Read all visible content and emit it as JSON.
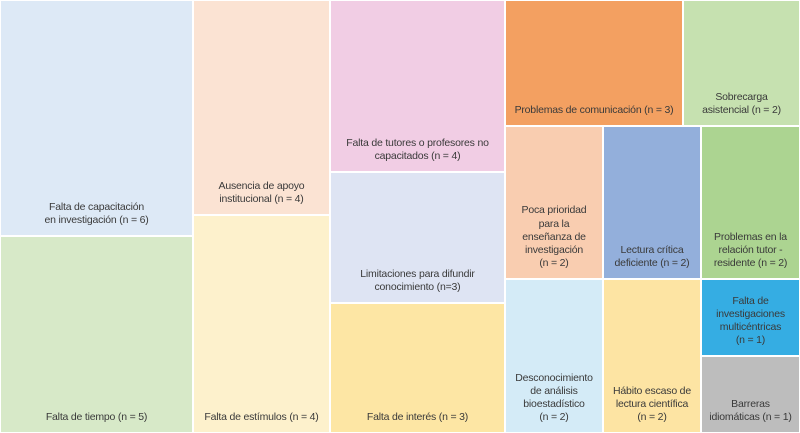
{
  "chart_data": {
    "type": "treemap",
    "title": "",
    "items": [
      {
        "label": "Falta de capacitación\nen investigación (n = 6)",
        "n": 6,
        "color": "#dde9f6"
      },
      {
        "label": "Falta de tiempo (n = 5)",
        "n": 5,
        "color": "#d7e9c8"
      },
      {
        "label": "Ausencia de apoyo\ninstitucional (n = 4)",
        "n": 4,
        "color": "#fbe3d3"
      },
      {
        "label": "Falta de estímulos (n = 4)",
        "n": 4,
        "color": "#fdf1cc"
      },
      {
        "label": "Falta de tutores o profesores no\ncapacitados (n = 4)",
        "n": 4,
        "color": "#f1cde4"
      },
      {
        "label": "Limitaciones para difundir\nconocimiento (n=3)",
        "n": 3,
        "color": "#dee4f3"
      },
      {
        "label": "Falta de interés (n = 3)",
        "n": 3,
        "color": "#fde6a4"
      },
      {
        "label": "Problemas de comunicación (n = 3)",
        "n": 3,
        "color": "#f3a061"
      },
      {
        "label": "Sobrecarga\nasistencial (n = 2)",
        "n": 2,
        "color": "#c6e1b0"
      },
      {
        "label": "Poca prioridad\npara la\nenseñanza de\ninvestigación\n(n = 2)",
        "n": 2,
        "color": "#f9cdb0"
      },
      {
        "label": "Lectura crítica\ndeficiente (n = 2)",
        "n": 2,
        "color": "#93afdb"
      },
      {
        "label": "Problemas en la\nrelación tutor -\nresidente (n = 2)",
        "n": 2,
        "color": "#acd491"
      },
      {
        "label": "Desconocimiento\nde análisis\nbioestadístico\n(n = 2)",
        "n": 2,
        "color": "#d4ebf7"
      },
      {
        "label": "Hábito escaso de\nlectura científica\n(n = 2)",
        "n": 2,
        "color": "#fde4a3"
      },
      {
        "label": "Falta de\ninvestigaciones\nmulticéntricas\n(n = 1)",
        "n": 1,
        "color": "#35ade3"
      },
      {
        "label": "Barreras\nidiomáticas (n = 1)",
        "n": 1,
        "color": "#bdbdbd"
      }
    ]
  }
}
